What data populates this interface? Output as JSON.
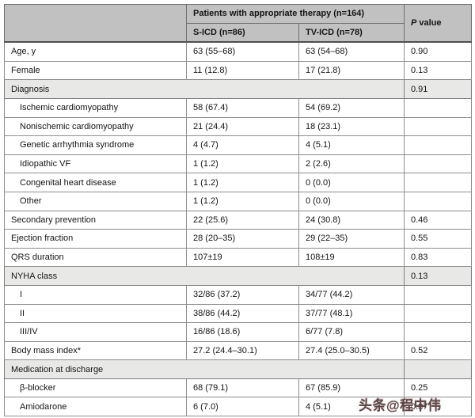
{
  "colors": {
    "header_bg": "#c1c1c1",
    "section_row_bg": "#e8e8e6",
    "border_dark": "#4f4f4f",
    "border_light": "#8d8d8d",
    "watermark_color": "#5d4444"
  },
  "table": {
    "header": {
      "group_label": "Patients with appropriate therapy (n=164)",
      "sicd": "S-ICD (n=86)",
      "tvicd": "TV-ICD (n=78)",
      "p_italic": "P",
      "p_rest": "value"
    },
    "rows": [
      {
        "type": "data",
        "indent": false,
        "label": "Age, y",
        "sicd": "63 (55–68)",
        "tvicd": "63 (54–68)",
        "p": "0.90"
      },
      {
        "type": "data",
        "indent": false,
        "label": "Female",
        "sicd": "11 (12.8)",
        "tvicd": "17 (21.8)",
        "p": "0.13"
      },
      {
        "type": "section",
        "label": "Diagnosis",
        "p": "0.91"
      },
      {
        "type": "data",
        "indent": true,
        "label": "Ischemic cardiomyopathy",
        "sicd": "58 (67.4)",
        "tvicd": "54 (69.2)",
        "p": ""
      },
      {
        "type": "data",
        "indent": true,
        "label": "Nonischemic cardiomyopathy",
        "sicd": "21 (24.4)",
        "tvicd": "18 (23.1)",
        "p": ""
      },
      {
        "type": "data",
        "indent": true,
        "label": "Genetic arrhythmia syndrome",
        "sicd": "4 (4.7)",
        "tvicd": "4 (5.1)",
        "p": ""
      },
      {
        "type": "data",
        "indent": true,
        "label": "Idiopathic VF",
        "sicd": "1 (1.2)",
        "tvicd": "2 (2.6)",
        "p": ""
      },
      {
        "type": "data",
        "indent": true,
        "label": "Congenital heart disease",
        "sicd": "1 (1.2)",
        "tvicd": "0 (0.0)",
        "p": ""
      },
      {
        "type": "data",
        "indent": true,
        "label": "Other",
        "sicd": "1 (1.2)",
        "tvicd": "0 (0.0)",
        "p": ""
      },
      {
        "type": "data",
        "indent": false,
        "label": "Secondary prevention",
        "sicd": "22 (25.6)",
        "tvicd": "24 (30.8)",
        "p": "0.46"
      },
      {
        "type": "data",
        "indent": false,
        "label": "Ejection fraction",
        "sicd": "28 (20–35)",
        "tvicd": "29 (22–35)",
        "p": "0.55"
      },
      {
        "type": "data",
        "indent": false,
        "label": "QRS duration",
        "sicd": "107±19",
        "tvicd": "108±19",
        "p": "0.83"
      },
      {
        "type": "section",
        "label": "NYHA class",
        "p": "0.13"
      },
      {
        "type": "data",
        "indent": true,
        "label": "I",
        "sicd": "32/86 (37.2)",
        "tvicd": "34/77 (44.2)",
        "p": ""
      },
      {
        "type": "data",
        "indent": true,
        "label": "II",
        "sicd": "38/86 (44.2)",
        "tvicd": "37/77 (48.1)",
        "p": ""
      },
      {
        "type": "data",
        "indent": true,
        "label": "III/IV",
        "sicd": "16/86 (18.6)",
        "tvicd": "6/77 (7.8)",
        "p": ""
      },
      {
        "type": "data",
        "indent": false,
        "label": "Body mass index*",
        "sicd": "27.2 (24.4–30.1)",
        "tvicd": "27.4 (25.0–30.5)",
        "p": "0.52"
      },
      {
        "type": "section",
        "label": "Medication at discharge",
        "p": ""
      },
      {
        "type": "data",
        "indent": true,
        "label": "β-blocker",
        "sicd": "68 (79.1)",
        "tvicd": "67 (85.9)",
        "p": "0.25"
      },
      {
        "type": "data",
        "indent": true,
        "label": "Amiodarone",
        "sicd": "6 (7.0)",
        "tvicd": "4 (5.1)",
        "p": "0.87"
      }
    ]
  },
  "watermark": {
    "text": "头条@程中伟"
  }
}
